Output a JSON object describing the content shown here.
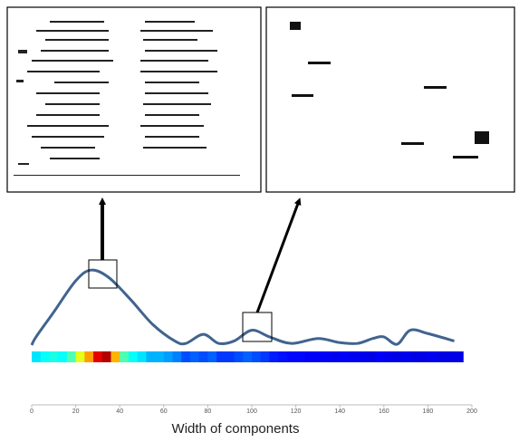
{
  "chart_data": {
    "type": "line",
    "x_label": "Width of components",
    "xlim": [
      0,
      200
    ],
    "xticks": [
      0,
      20,
      40,
      60,
      80,
      100,
      120,
      140,
      160,
      180,
      200
    ],
    "ylim": [
      0,
      100
    ],
    "series": [
      {
        "color": "#41648f",
        "x": [
          0,
          2,
          10,
          20,
          27,
          35,
          45,
          55,
          65,
          70,
          78,
          85,
          92,
          100,
          108,
          118,
          130,
          140,
          148,
          155,
          160,
          166,
          172,
          180,
          192
        ],
        "values": [
          0,
          10,
          40,
          78,
          91,
          82,
          55,
          25,
          5,
          2,
          13,
          2,
          5,
          18,
          10,
          2,
          8,
          3,
          2,
          8,
          10,
          1,
          18,
          14,
          5
        ]
      }
    ],
    "heat_step": 4,
    "heat": [
      0.35,
      0.38,
      0.4,
      0.38,
      0.45,
      0.6,
      0.72,
      0.9,
      0.95,
      0.7,
      0.45,
      0.38,
      0.35,
      0.3,
      0.3,
      0.28,
      0.25,
      0.2,
      0.22,
      0.2,
      0.22,
      0.18,
      0.18,
      0.2,
      0.22,
      0.2,
      0.18,
      0.15,
      0.14,
      0.13,
      0.13,
      0.12,
      0.12,
      0.12,
      0.11,
      0.12,
      0.11,
      0.11,
      0.1,
      0.12,
      0.11,
      0.1,
      0.11,
      0.1,
      0.1,
      0.11,
      0.1,
      0.1,
      0.1
    ]
  }
}
